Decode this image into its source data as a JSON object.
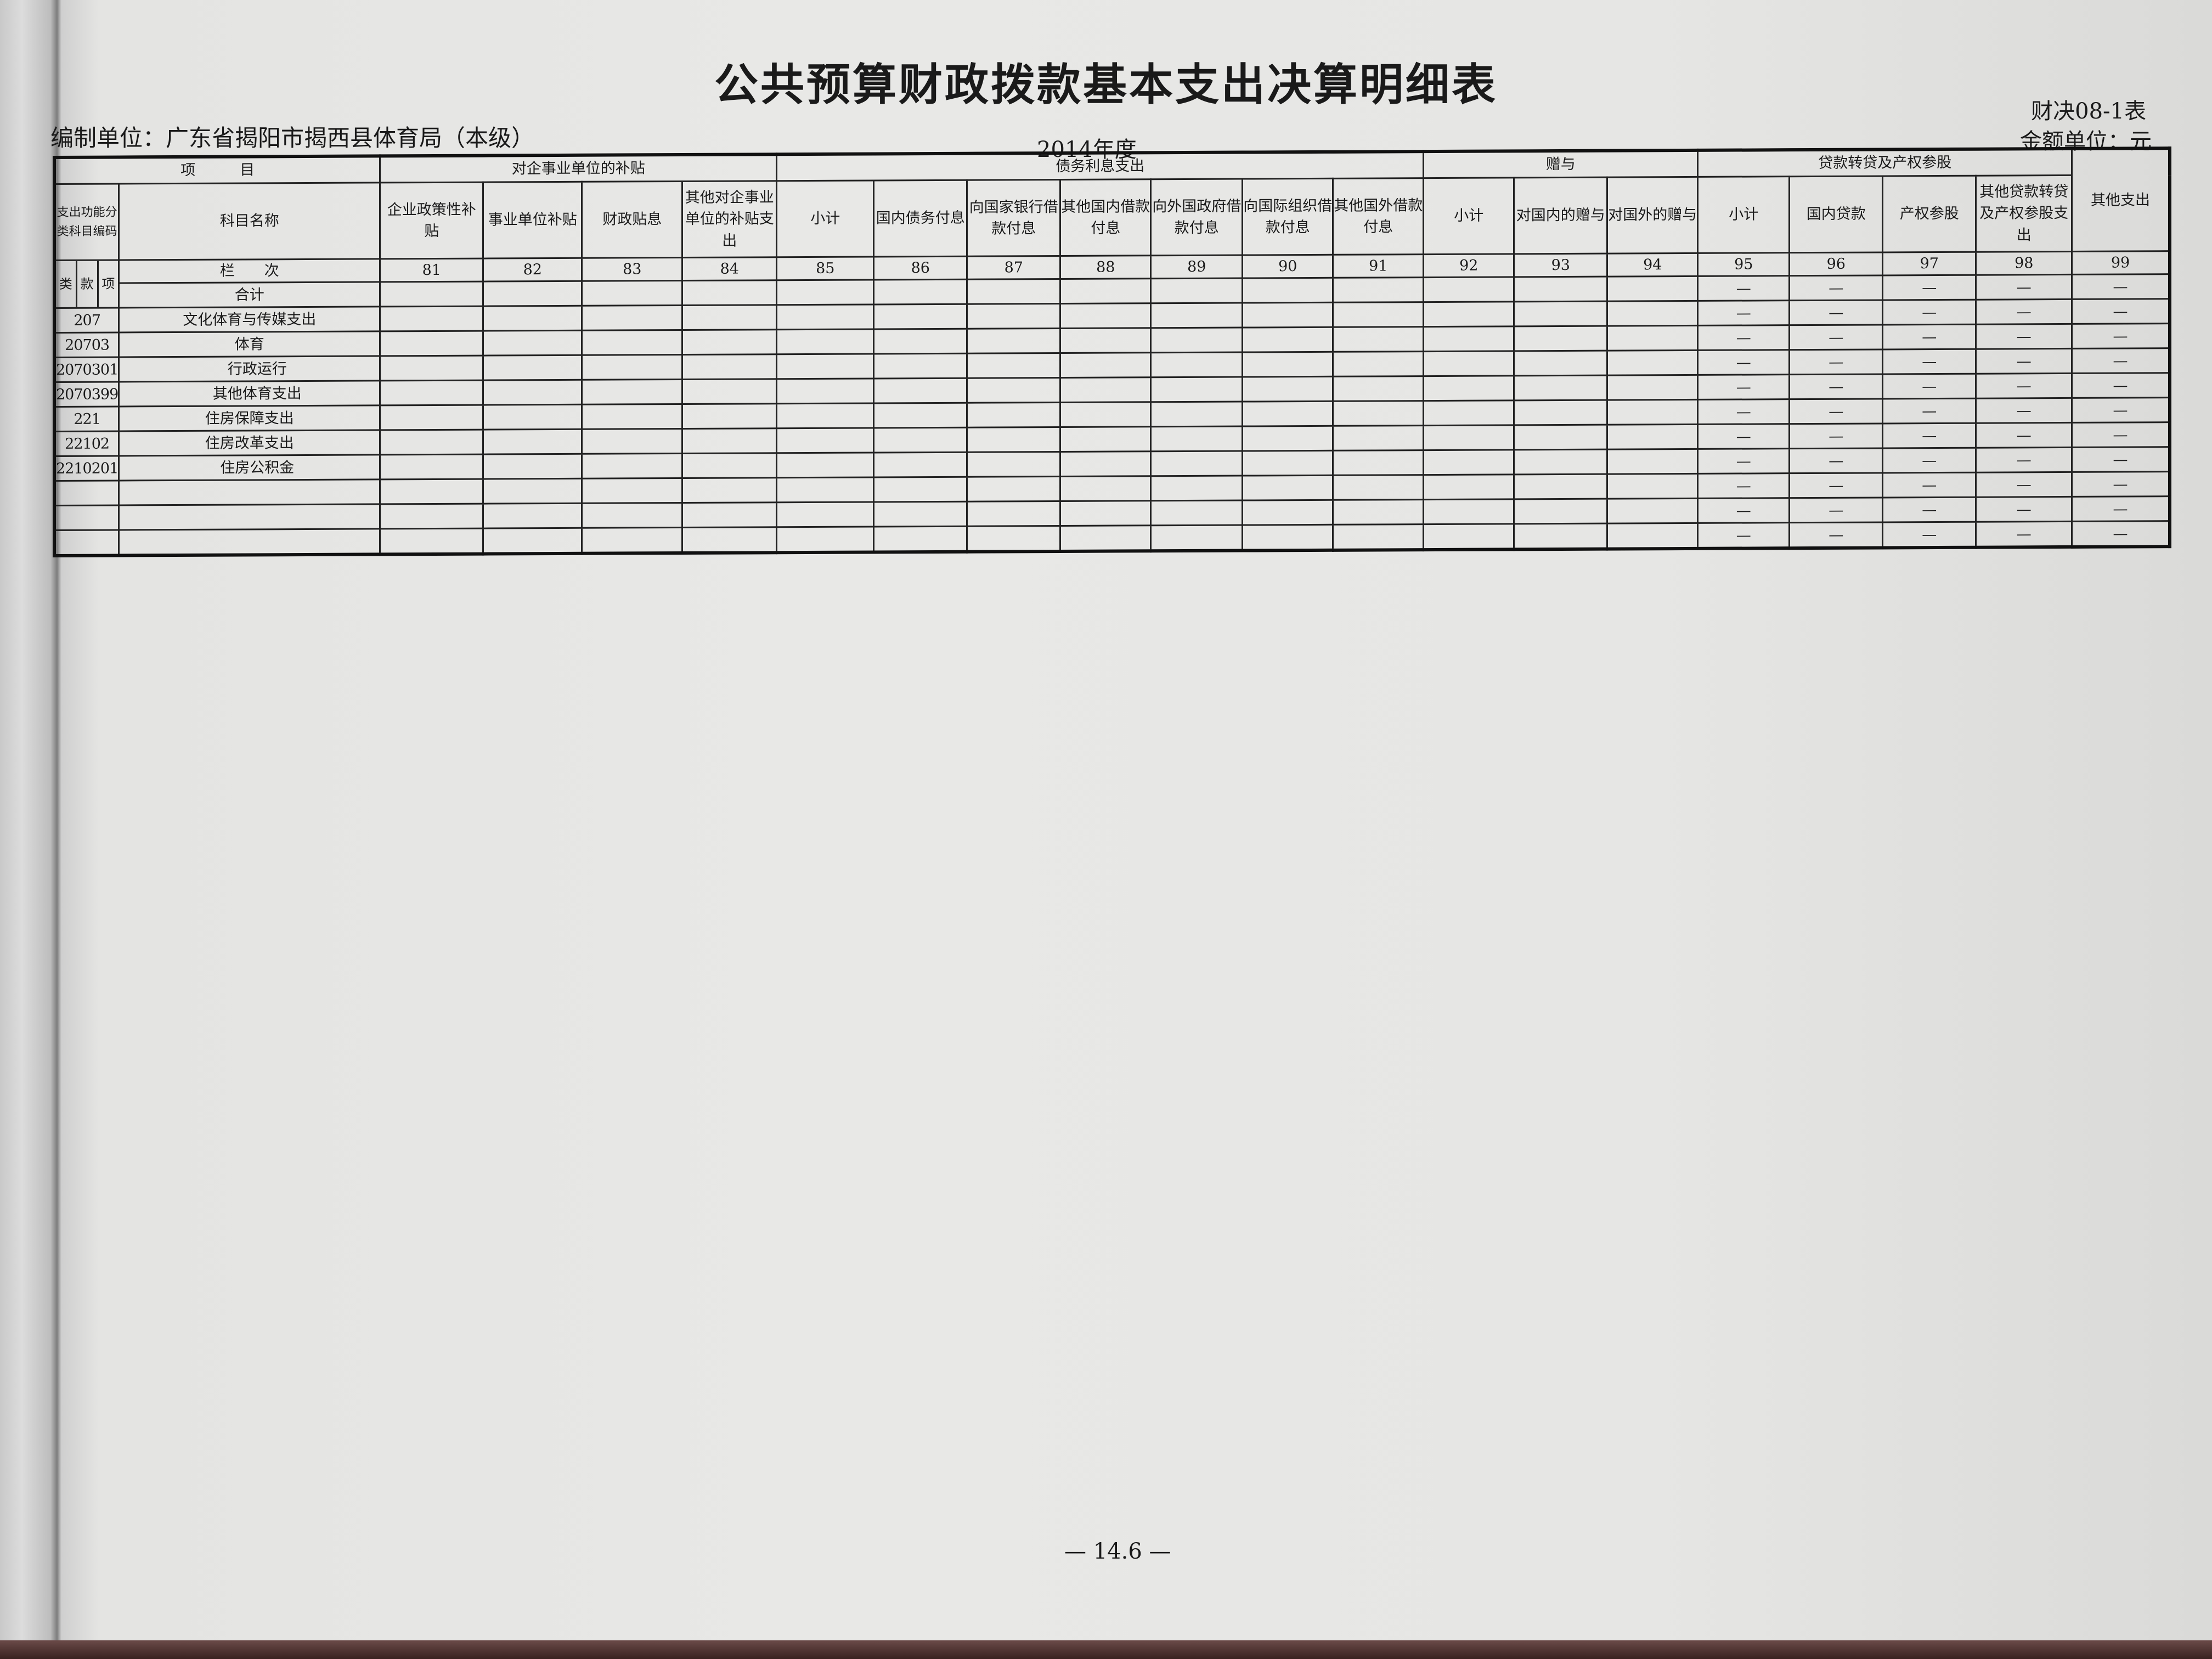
{
  "title": "公共预算财政拨款基本支出决算明细表",
  "org_label": "编制单位：广东省揭阳市揭西县体育局（本级）",
  "year": "2014年度",
  "form_no": "财决08-1表",
  "currency_unit": "金额单位：元",
  "page_number": "— 14.6 —",
  "header": {
    "item": "项　　　目",
    "code_header": "支出功能分类科目编码",
    "name_header": "科目名称",
    "column_no_label": "栏　　次",
    "class_labels": [
      "类",
      "款",
      "项"
    ],
    "groups": [
      {
        "label": "对企事业单位的补贴",
        "span": 4
      },
      {
        "label": "债务利息支出",
        "span": 7
      },
      {
        "label": "赠与",
        "span": 3
      },
      {
        "label": "贷款转贷及产权参股",
        "span": 4
      }
    ],
    "columns": [
      {
        "label": "企业政策性补贴",
        "no": "81"
      },
      {
        "label": "事业单位补贴",
        "no": "82"
      },
      {
        "label": "财政贴息",
        "no": "83"
      },
      {
        "label": "其他对企事业单位的补贴支出",
        "no": "84"
      },
      {
        "label": "小计",
        "no": "85"
      },
      {
        "label": "国内债务付息",
        "no": "86"
      },
      {
        "label": "向国家银行借款付息",
        "no": "87"
      },
      {
        "label": "其他国内借款付息",
        "no": "88"
      },
      {
        "label": "向外国政府借款付息",
        "no": "89"
      },
      {
        "label": "向国际组织借款付息",
        "no": "90"
      },
      {
        "label": "其他国外借款付息",
        "no": "91"
      },
      {
        "label": "小计",
        "no": "92"
      },
      {
        "label": "对国内的赠与",
        "no": "93"
      },
      {
        "label": "对国外的赠与",
        "no": "94"
      },
      {
        "label": "小计",
        "no": "95"
      },
      {
        "label": "国内贷款",
        "no": "96"
      },
      {
        "label": "产权参股",
        "no": "97"
      },
      {
        "label": "其他贷款转贷及产权参股支出",
        "no": "98"
      },
      {
        "label": "其他支出",
        "no": "99"
      }
    ]
  },
  "total_row": {
    "name": "合计",
    "values": [
      "",
      "",
      "",
      "",
      "",
      "",
      "",
      "",
      "",
      "",
      "",
      "",
      "",
      "",
      "—",
      "—",
      "—",
      "—",
      "—"
    ]
  },
  "rows": [
    {
      "code": "207",
      "name": "文化体育与传媒支出",
      "level": 0,
      "values": [
        "",
        "",
        "",
        "",
        "",
        "",
        "",
        "",
        "",
        "",
        "",
        "",
        "",
        "",
        "—",
        "—",
        "—",
        "—",
        "—"
      ]
    },
    {
      "code": "20703",
      "name": "体育",
      "level": 0,
      "values": [
        "",
        "",
        "",
        "",
        "",
        "",
        "",
        "",
        "",
        "",
        "",
        "",
        "",
        "",
        "—",
        "—",
        "—",
        "—",
        "—"
      ]
    },
    {
      "code": "2070301",
      "name": "行政运行",
      "level": 1,
      "values": [
        "",
        "",
        "",
        "",
        "",
        "",
        "",
        "",
        "",
        "",
        "",
        "",
        "",
        "",
        "—",
        "—",
        "—",
        "—",
        "—"
      ]
    },
    {
      "code": "2070399",
      "name": "其他体育支出",
      "level": 1,
      "values": [
        "",
        "",
        "",
        "",
        "",
        "",
        "",
        "",
        "",
        "",
        "",
        "",
        "",
        "",
        "—",
        "—",
        "—",
        "—",
        "—"
      ]
    },
    {
      "code": "221",
      "name": "住房保障支出",
      "level": 0,
      "values": [
        "",
        "",
        "",
        "",
        "",
        "",
        "",
        "",
        "",
        "",
        "",
        "",
        "",
        "",
        "—",
        "—",
        "—",
        "—",
        "—"
      ]
    },
    {
      "code": "22102",
      "name": "住房改革支出",
      "level": 0,
      "values": [
        "",
        "",
        "",
        "",
        "",
        "",
        "",
        "",
        "",
        "",
        "",
        "",
        "",
        "",
        "—",
        "—",
        "—",
        "—",
        "—"
      ]
    },
    {
      "code": "2210201",
      "name": "住房公积金",
      "level": 1,
      "values": [
        "",
        "",
        "",
        "",
        "",
        "",
        "",
        "",
        "",
        "",
        "",
        "",
        "",
        "",
        "—",
        "—",
        "—",
        "—",
        "—"
      ]
    },
    {
      "code": "",
      "name": "",
      "level": 0,
      "values": [
        "",
        "",
        "",
        "",
        "",
        "",
        "",
        "",
        "",
        "",
        "",
        "",
        "",
        "",
        "—",
        "—",
        "—",
        "—",
        "—"
      ]
    },
    {
      "code": "",
      "name": "",
      "level": 0,
      "values": [
        "",
        "",
        "",
        "",
        "",
        "",
        "",
        "",
        "",
        "",
        "",
        "",
        "",
        "",
        "—",
        "—",
        "—",
        "—",
        "—"
      ]
    },
    {
      "code": "",
      "name": "",
      "level": 0,
      "values": [
        "",
        "",
        "",
        "",
        "",
        "",
        "",
        "",
        "",
        "",
        "",
        "",
        "",
        "",
        "—",
        "—",
        "—",
        "—",
        "—"
      ]
    }
  ]
}
